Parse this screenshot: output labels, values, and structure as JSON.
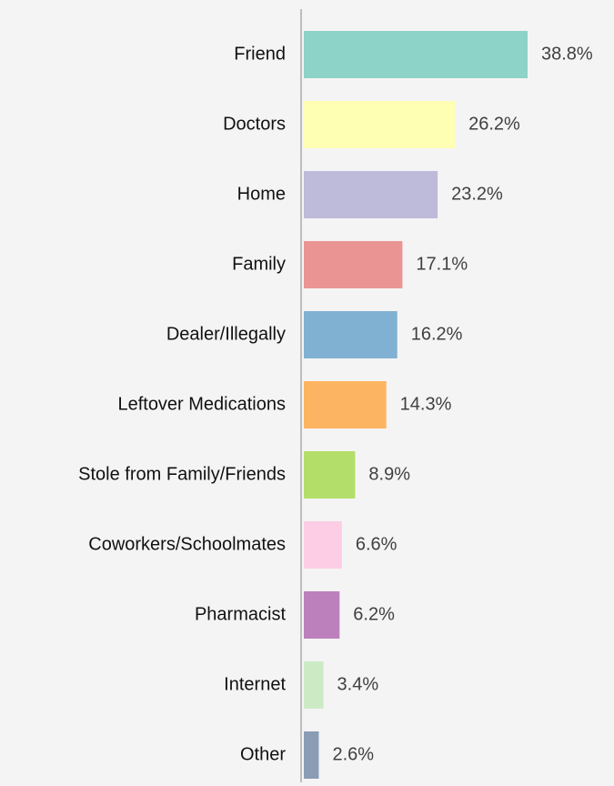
{
  "chart_data": {
    "type": "bar",
    "orientation": "horizontal",
    "categories": [
      "Friend",
      "Doctors",
      "Home",
      "Family",
      "Dealer/Illegally",
      "Leftover Medications",
      "Stole from Family/Friends",
      "Coworkers/Schoolmates",
      "Pharmacist",
      "Internet",
      "Other"
    ],
    "values": [
      38.8,
      26.2,
      23.2,
      17.1,
      16.2,
      14.3,
      8.9,
      6.6,
      6.2,
      3.4,
      2.6
    ],
    "value_labels": [
      "38.8%",
      "26.2%",
      "23.2%",
      "17.1%",
      "16.2%",
      "14.3%",
      "8.9%",
      "6.6%",
      "6.2%",
      "3.4%",
      "2.6%"
    ],
    "colors": [
      "#8dd3c7",
      "#ffffb3",
      "#bebada",
      "#ea9594",
      "#80b1d3",
      "#fdb462",
      "#b3de69",
      "#fccde5",
      "#bc80bd",
      "#ccebc5",
      "#8a9db5"
    ]
  }
}
